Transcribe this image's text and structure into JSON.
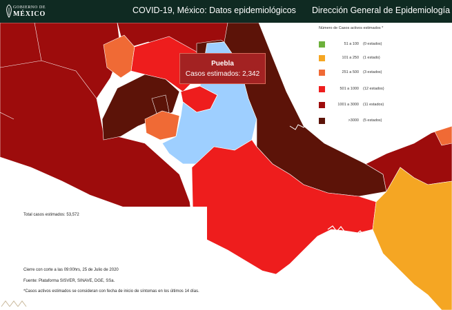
{
  "header": {
    "logo_line1": "GOBIERNO DE",
    "logo_line2": "MÉXICO",
    "title": "COVID-19, México: Datos epidemiológicos",
    "organization": "Dirección General de Epidemiología"
  },
  "legend": {
    "title": "Número de Casos activos estimados *",
    "items": [
      {
        "range": "51  a  100",
        "count": "(0 estados)",
        "color": "#6cb03b"
      },
      {
        "range": "101  a  250",
        "count": "(1 estado)",
        "color": "#f5a623"
      },
      {
        "range": "251  a  500",
        "count": "(3 estados)",
        "color": "#f06a35"
      },
      {
        "range": "501 a 1000",
        "count": "(12 estados)",
        "color": "#ee1d1d"
      },
      {
        "range": "1001  a 3000",
        "count": "(11 estados)",
        "color": "#9d0c0c"
      },
      {
        "range": ">3000",
        "count": "(5 estados)",
        "color": "#5c1308"
      }
    ]
  },
  "map": {
    "highlight_color": "#9ecfff",
    "tooltip": {
      "state": "Puebla",
      "value": "Casos estimados: 2,342"
    }
  },
  "info": {
    "total": "Total casos estimados: 53,572",
    "cutoff": "Cierre con corte a las 09:00hrs, 25 de Julio de 2020",
    "source": "Fuente: Plataforma SISVER, SINAVE, DGE, SSa.",
    "footnote": "*Casos activos estimados se consideran con fecha de inicio de síntomas en los últimos 14 días."
  }
}
